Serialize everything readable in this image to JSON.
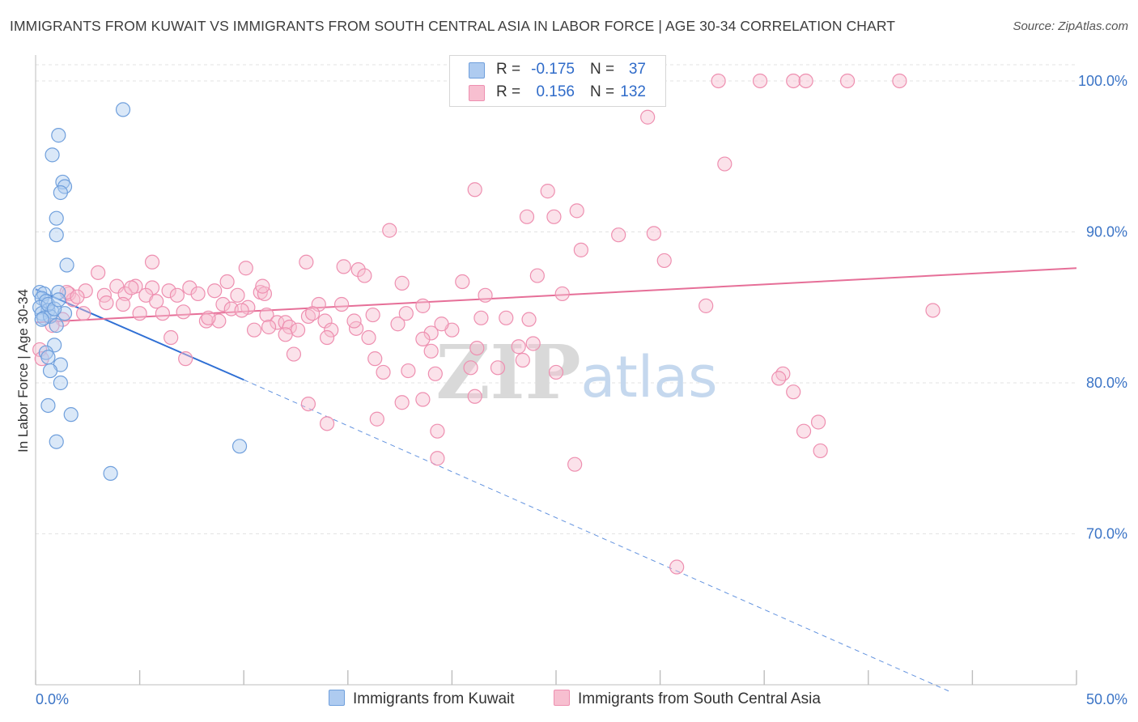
{
  "title": "IMMIGRANTS FROM KUWAIT VS IMMIGRANTS FROM SOUTH CENTRAL ASIA IN LABOR FORCE | AGE 30-34 CORRELATION CHART",
  "source": "Source: ZipAtlas.com",
  "watermark": {
    "zip": "ZIP",
    "atlas": "atlas"
  },
  "legend": {
    "rows": [
      {
        "r_label": "R =",
        "r_value": "-0.175",
        "n_label": "N =",
        "n_value": "37"
      },
      {
        "r_label": "R =",
        "r_value": "0.156",
        "n_label": "N =",
        "n_value": "132"
      }
    ]
  },
  "bottom_legend": {
    "kuwait": "Immigrants from Kuwait",
    "sca": "Immigrants from South Central Asia"
  },
  "colors": {
    "kuwait_fill": "#aecbf0",
    "kuwait_stroke": "#6f9fdc",
    "kuwait_line": "#2f6fd4",
    "sca_fill": "#f7bfd0",
    "sca_stroke": "#ee8fb0",
    "sca_line": "#e66f98",
    "axis_value": "#3b74c6",
    "grid": "#e3e3e3"
  },
  "chart_data": {
    "type": "scatter",
    "title": "IMMIGRANTS FROM KUWAIT VS IMMIGRANTS FROM SOUTH CENTRAL ASIA IN LABOR FORCE | AGE 30-34 CORRELATION CHART",
    "xlabel": "",
    "ylabel": "In Labor Force | Age 30-34",
    "xlim": [
      0,
      50
    ],
    "ylim": [
      60,
      101.5
    ],
    "x_tick_labels": [
      "0.0%",
      "50.0%"
    ],
    "y_ticks": [
      70,
      80,
      90,
      100
    ],
    "y_tick_labels": [
      "70.0%",
      "80.0%",
      "90.0%",
      "100.0%"
    ],
    "grid": true,
    "series": [
      {
        "name": "Immigrants from Kuwait",
        "r": -0.175,
        "n": 37,
        "trend": {
          "x": [
            0,
            10
          ],
          "y": [
            86.2,
            80.2
          ],
          "dashed_to": [
            44,
            59.5
          ]
        },
        "points": [
          [
            4.2,
            98.1
          ],
          [
            1.1,
            96.4
          ],
          [
            0.8,
            95.1
          ],
          [
            1.3,
            93.3
          ],
          [
            1.4,
            93.0
          ],
          [
            1.2,
            92.6
          ],
          [
            1.0,
            90.9
          ],
          [
            1.0,
            89.8
          ],
          [
            1.5,
            87.8
          ],
          [
            0.2,
            86.0
          ],
          [
            0.4,
            85.9
          ],
          [
            1.1,
            86.0
          ],
          [
            0.3,
            85.6
          ],
          [
            0.5,
            85.4
          ],
          [
            0.2,
            85.0
          ],
          [
            0.6,
            84.8
          ],
          [
            0.3,
            84.6
          ],
          [
            0.8,
            84.7
          ],
          [
            0.4,
            84.3
          ],
          [
            0.7,
            84.4
          ],
          [
            1.4,
            84.6
          ],
          [
            1.0,
            83.8
          ],
          [
            0.9,
            82.5
          ],
          [
            0.5,
            82.0
          ],
          [
            0.6,
            81.7
          ],
          [
            1.2,
            81.2
          ],
          [
            0.7,
            80.8
          ],
          [
            1.2,
            80.0
          ],
          [
            0.6,
            78.5
          ],
          [
            1.7,
            77.9
          ],
          [
            1.0,
            76.1
          ],
          [
            9.8,
            75.8
          ],
          [
            3.6,
            74.0
          ],
          [
            0.6,
            85.2
          ],
          [
            0.9,
            84.9
          ],
          [
            0.3,
            84.2
          ],
          [
            1.1,
            85.5
          ]
        ]
      },
      {
        "name": "Immigrants from South Central Asia",
        "r": 0.156,
        "n": 132,
        "trend": {
          "x": [
            0,
            50
          ],
          "y": [
            84.0,
            87.6
          ]
        },
        "points": [
          [
            32.8,
            100.0
          ],
          [
            34.8,
            100.0
          ],
          [
            36.4,
            100.0
          ],
          [
            37.0,
            100.0
          ],
          [
            39.0,
            100.0
          ],
          [
            41.5,
            100.0
          ],
          [
            29.4,
            97.6
          ],
          [
            33.1,
            94.5
          ],
          [
            21.1,
            92.8
          ],
          [
            24.6,
            92.7
          ],
          [
            26.0,
            91.4
          ],
          [
            23.6,
            91.0
          ],
          [
            24.9,
            91.0
          ],
          [
            17.0,
            90.1
          ],
          [
            28.0,
            89.8
          ],
          [
            29.7,
            89.9
          ],
          [
            26.2,
            88.8
          ],
          [
            5.6,
            88.0
          ],
          [
            13.0,
            88.0
          ],
          [
            30.2,
            88.1
          ],
          [
            3.0,
            87.3
          ],
          [
            10.1,
            87.6
          ],
          [
            14.8,
            87.7
          ],
          [
            15.5,
            87.5
          ],
          [
            15.8,
            87.1
          ],
          [
            24.1,
            87.1
          ],
          [
            9.2,
            86.7
          ],
          [
            17.6,
            86.6
          ],
          [
            20.5,
            86.7
          ],
          [
            3.9,
            86.4
          ],
          [
            4.8,
            86.4
          ],
          [
            5.6,
            86.3
          ],
          [
            6.4,
            86.1
          ],
          [
            7.4,
            86.3
          ],
          [
            8.6,
            86.1
          ],
          [
            10.8,
            86.0
          ],
          [
            2.4,
            86.1
          ],
          [
            1.6,
            85.9
          ],
          [
            3.3,
            85.8
          ],
          [
            4.3,
            85.9
          ],
          [
            5.3,
            85.8
          ],
          [
            6.8,
            85.8
          ],
          [
            7.8,
            85.9
          ],
          [
            9.7,
            85.8
          ],
          [
            11.0,
            85.9
          ],
          [
            21.6,
            85.8
          ],
          [
            25.3,
            85.9
          ],
          [
            1.8,
            85.5
          ],
          [
            3.4,
            85.3
          ],
          [
            5.8,
            85.4
          ],
          [
            9.0,
            85.2
          ],
          [
            13.6,
            85.2
          ],
          [
            14.7,
            85.2
          ],
          [
            18.6,
            85.1
          ],
          [
            32.2,
            85.1
          ],
          [
            10.2,
            85.0
          ],
          [
            9.4,
            84.9
          ],
          [
            43.1,
            84.8
          ],
          [
            2.3,
            84.6
          ],
          [
            5.0,
            84.6
          ],
          [
            7.1,
            84.7
          ],
          [
            11.1,
            84.5
          ],
          [
            13.1,
            84.4
          ],
          [
            16.2,
            84.5
          ],
          [
            21.4,
            84.3
          ],
          [
            22.6,
            84.3
          ],
          [
            23.7,
            84.2
          ],
          [
            1.3,
            84.2
          ],
          [
            8.2,
            84.1
          ],
          [
            8.8,
            84.1
          ],
          [
            11.6,
            84.0
          ],
          [
            12.0,
            84.0
          ],
          [
            13.9,
            84.1
          ],
          [
            17.4,
            83.9
          ],
          [
            10.5,
            83.5
          ],
          [
            11.2,
            83.7
          ],
          [
            12.2,
            83.7
          ],
          [
            12.6,
            83.5
          ],
          [
            14.2,
            83.5
          ],
          [
            15.4,
            83.6
          ],
          [
            19.0,
            83.3
          ],
          [
            12.0,
            83.2
          ],
          [
            14.0,
            83.0
          ],
          [
            16.0,
            83.0
          ],
          [
            18.6,
            82.9
          ],
          [
            6.5,
            83.0
          ],
          [
            21.2,
            82.3
          ],
          [
            23.2,
            82.4
          ],
          [
            23.9,
            82.6
          ],
          [
            19.0,
            82.1
          ],
          [
            12.4,
            81.9
          ],
          [
            7.2,
            81.6
          ],
          [
            16.3,
            81.6
          ],
          [
            23.4,
            81.5
          ],
          [
            20.9,
            81.0
          ],
          [
            17.9,
            80.8
          ],
          [
            16.7,
            80.7
          ],
          [
            19.2,
            80.6
          ],
          [
            25.0,
            80.7
          ],
          [
            35.9,
            80.6
          ],
          [
            35.7,
            80.3
          ],
          [
            36.4,
            79.4
          ],
          [
            21.1,
            79.1
          ],
          [
            18.6,
            78.9
          ],
          [
            17.6,
            78.7
          ],
          [
            13.1,
            78.6
          ],
          [
            16.4,
            77.6
          ],
          [
            37.6,
            77.4
          ],
          [
            14.0,
            77.3
          ],
          [
            36.9,
            76.8
          ],
          [
            19.3,
            76.8
          ],
          [
            37.7,
            75.5
          ],
          [
            19.3,
            75.0
          ],
          [
            25.9,
            74.6
          ],
          [
            30.8,
            67.8
          ],
          [
            0.2,
            82.2
          ],
          [
            0.3,
            81.6
          ],
          [
            0.8,
            83.8
          ],
          [
            1.5,
            86.0
          ],
          [
            2.0,
            85.7
          ],
          [
            4.6,
            86.3
          ],
          [
            4.2,
            85.2
          ],
          [
            6.1,
            84.6
          ],
          [
            8.3,
            84.3
          ],
          [
            10.9,
            86.4
          ],
          [
            9.9,
            84.8
          ],
          [
            13.3,
            84.6
          ],
          [
            20.0,
            83.5
          ],
          [
            22.2,
            81.0
          ],
          [
            15.3,
            84.1
          ],
          [
            17.8,
            84.6
          ],
          [
            19.5,
            83.9
          ]
        ]
      }
    ]
  }
}
